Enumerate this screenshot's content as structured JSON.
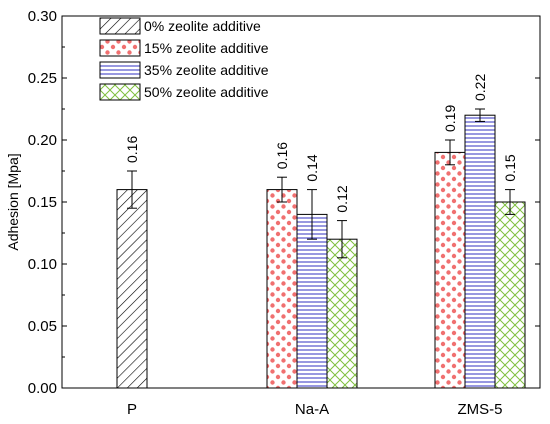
{
  "chart_data": {
    "type": "bar",
    "categories": [
      "P",
      "Na-A",
      "ZMS-5"
    ],
    "ylabel": "Adhesion [Mpa]",
    "xlabel": "",
    "ylim": [
      0,
      0.3
    ],
    "yticks": [
      "0.00",
      "0.05",
      "0.10",
      "0.15",
      "0.20",
      "0.25",
      "0.30"
    ],
    "legend_position": "top-left",
    "series": [
      {
        "name": "0% zeolite additive",
        "pattern": "diagonal-hatch",
        "color": "#000000",
        "values": [
          0.16,
          null,
          null
        ],
        "errors": [
          0.015,
          null,
          null
        ],
        "labels": [
          "0.16",
          null,
          null
        ]
      },
      {
        "name": "15% zeolite additive",
        "pattern": "red-dots",
        "color": "#f07070",
        "values": [
          null,
          0.16,
          0.19
        ],
        "errors": [
          null,
          0.01,
          0.01
        ],
        "labels": [
          null,
          "0.16",
          "0.19"
        ]
      },
      {
        "name": "35% zeolite additive",
        "pattern": "blue-horizontal-lines",
        "color": "#3030c0",
        "values": [
          null,
          0.14,
          0.22
        ],
        "errors": [
          null,
          0.02,
          0.005
        ],
        "labels": [
          null,
          "0.14",
          "0.22"
        ]
      },
      {
        "name": "50% zeolite additive",
        "pattern": "green-crosshatch",
        "color": "#80c040",
        "values": [
          null,
          0.12,
          0.15
        ],
        "errors": [
          null,
          0.015,
          0.01
        ],
        "labels": [
          null,
          "0.12",
          "0.15"
        ]
      }
    ]
  }
}
